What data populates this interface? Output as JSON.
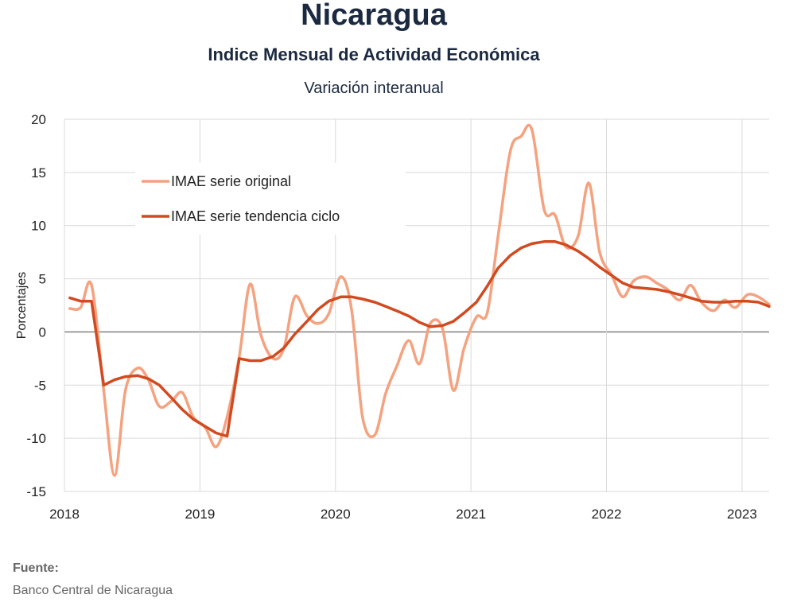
{
  "header": {
    "title": "Nicaragua",
    "subtitle": "Indice Mensual de  Actividad Económica",
    "subsubtitle": "Variación interanual"
  },
  "footer": {
    "source_label": "Fuente:",
    "source_text": "Banco Central de Nicaragua"
  },
  "colors": {
    "original": "#f4a27f",
    "trend": "#d24a20",
    "grid": "#d9d9d9",
    "zero_line": "#808080",
    "negative_tick": "#c00000"
  },
  "chart_data": {
    "type": "line",
    "title": "Nicaragua",
    "ylabel": "Porcentajes",
    "xlabel": "",
    "ylim": [
      -15,
      20
    ],
    "yticks": [
      20,
      15,
      10,
      5,
      0,
      -5,
      -10,
      -15
    ],
    "xlim": [
      2018,
      2023.2
    ],
    "xticks": [
      2018,
      2019,
      2020,
      2021,
      2022,
      2023
    ],
    "grid": true,
    "legend_position": "top-left",
    "series": [
      {
        "name": "IMAE serie original",
        "points": [
          [
            2018.04,
            2.2
          ],
          [
            2018.12,
            2.3
          ],
          [
            2018.2,
            4.4
          ],
          [
            2018.29,
            -5.5
          ],
          [
            2018.37,
            -13.5
          ],
          [
            2018.45,
            -5.5
          ],
          [
            2018.54,
            -3.4
          ],
          [
            2018.62,
            -4.5
          ],
          [
            2018.7,
            -7.0
          ],
          [
            2018.79,
            -6.5
          ],
          [
            2018.87,
            -5.7
          ],
          [
            2018.95,
            -8.0
          ],
          [
            2019.04,
            -9.0
          ],
          [
            2019.12,
            -10.8
          ],
          [
            2019.2,
            -8.0
          ],
          [
            2019.29,
            -2.3
          ],
          [
            2019.37,
            4.5
          ],
          [
            2019.45,
            -0.3
          ],
          [
            2019.54,
            -2.5
          ],
          [
            2019.62,
            -1.5
          ],
          [
            2019.7,
            3.3
          ],
          [
            2019.79,
            1.5
          ],
          [
            2019.87,
            0.8
          ],
          [
            2019.95,
            1.7
          ],
          [
            2020.04,
            5.2
          ],
          [
            2020.12,
            2.0
          ],
          [
            2020.2,
            -8.0
          ],
          [
            2020.29,
            -9.7
          ],
          [
            2020.37,
            -5.8
          ],
          [
            2020.45,
            -3.3
          ],
          [
            2020.54,
            -0.8
          ],
          [
            2020.62,
            -3.0
          ],
          [
            2020.7,
            0.8
          ],
          [
            2020.79,
            0.3
          ],
          [
            2020.87,
            -5.5
          ],
          [
            2020.95,
            -1.5
          ],
          [
            2021.04,
            1.4
          ],
          [
            2021.12,
            1.8
          ],
          [
            2021.2,
            9.0
          ],
          [
            2021.29,
            17.0
          ],
          [
            2021.37,
            18.4
          ],
          [
            2021.45,
            19.0
          ],
          [
            2021.54,
            11.5
          ],
          [
            2021.62,
            11.0
          ],
          [
            2021.7,
            8.0
          ],
          [
            2021.79,
            9.0
          ],
          [
            2021.87,
            14.0
          ],
          [
            2021.95,
            7.5
          ],
          [
            2022.04,
            5.3
          ],
          [
            2022.12,
            3.3
          ],
          [
            2022.2,
            4.8
          ],
          [
            2022.29,
            5.2
          ],
          [
            2022.37,
            4.6
          ],
          [
            2022.45,
            4.0
          ],
          [
            2022.54,
            3.0
          ],
          [
            2022.62,
            4.4
          ],
          [
            2022.7,
            2.8
          ],
          [
            2022.79,
            2.0
          ],
          [
            2022.87,
            3.0
          ],
          [
            2022.95,
            2.3
          ],
          [
            2023.04,
            3.5
          ],
          [
            2023.12,
            3.3
          ],
          [
            2023.2,
            2.6
          ]
        ]
      },
      {
        "name": "IMAE serie  tendencia ciclo",
        "points": [
          [
            2018.04,
            3.2
          ],
          [
            2018.12,
            2.9
          ],
          [
            2018.2,
            2.9
          ],
          [
            2018.29,
            -5.0
          ],
          [
            2018.37,
            -4.5
          ],
          [
            2018.45,
            -4.2
          ],
          [
            2018.54,
            -4.1
          ],
          [
            2018.62,
            -4.4
          ],
          [
            2018.7,
            -5.0
          ],
          [
            2018.79,
            -6.2
          ],
          [
            2018.87,
            -7.3
          ],
          [
            2018.95,
            -8.2
          ],
          [
            2019.04,
            -8.9
          ],
          [
            2019.12,
            -9.5
          ],
          [
            2019.2,
            -9.8
          ],
          [
            2019.29,
            -2.5
          ],
          [
            2019.37,
            -2.7
          ],
          [
            2019.45,
            -2.7
          ],
          [
            2019.54,
            -2.3
          ],
          [
            2019.62,
            -1.5
          ],
          [
            2019.7,
            -0.2
          ],
          [
            2019.79,
            1.0
          ],
          [
            2019.87,
            2.1
          ],
          [
            2019.95,
            2.9
          ],
          [
            2020.04,
            3.3
          ],
          [
            2020.12,
            3.3
          ],
          [
            2020.2,
            3.1
          ],
          [
            2020.29,
            2.8
          ],
          [
            2020.37,
            2.4
          ],
          [
            2020.45,
            2.0
          ],
          [
            2020.54,
            1.5
          ],
          [
            2020.62,
            0.9
          ],
          [
            2020.7,
            0.5
          ],
          [
            2020.79,
            0.6
          ],
          [
            2020.87,
            1.0
          ],
          [
            2020.95,
            1.8
          ],
          [
            2021.04,
            2.8
          ],
          [
            2021.12,
            4.3
          ],
          [
            2021.2,
            6.0
          ],
          [
            2021.29,
            7.2
          ],
          [
            2021.37,
            7.9
          ],
          [
            2021.45,
            8.3
          ],
          [
            2021.54,
            8.5
          ],
          [
            2021.62,
            8.5
          ],
          [
            2021.7,
            8.2
          ],
          [
            2021.79,
            7.6
          ],
          [
            2021.87,
            6.9
          ],
          [
            2021.95,
            6.1
          ],
          [
            2022.04,
            5.3
          ],
          [
            2022.12,
            4.6
          ],
          [
            2022.2,
            4.2
          ],
          [
            2022.29,
            4.1
          ],
          [
            2022.37,
            4.0
          ],
          [
            2022.45,
            3.8
          ],
          [
            2022.54,
            3.5
          ],
          [
            2022.62,
            3.2
          ],
          [
            2022.7,
            2.9
          ],
          [
            2022.79,
            2.8
          ],
          [
            2022.87,
            2.8
          ],
          [
            2022.95,
            2.9
          ],
          [
            2023.04,
            2.9
          ],
          [
            2023.12,
            2.8
          ],
          [
            2023.2,
            2.4
          ]
        ]
      }
    ]
  }
}
